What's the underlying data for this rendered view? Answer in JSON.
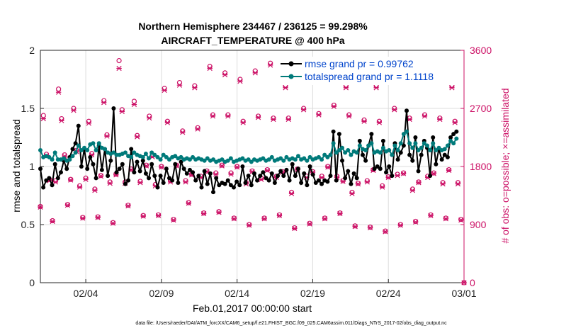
{
  "chart_data": {
    "type": "line",
    "title": "Northern Hemisphere 234467 / 236125 = 99.298%",
    "subtitle": "AIRCRAFT_TEMPERATURE @ 400 hPa",
    "xlabel": "Feb.01,2017 00:00:00 start",
    "ylabel": "rmse and totalspread",
    "ylabel_right": "# of obs: o=possible; ×=assimilated",
    "footnote": "data file: /Users/raeder/DAI/ATM_forcXX/CAM6_setup/f.e21.FHIST_BGC.f09_025.CAM6assim.011/Diags_NTrS_2017-02/obs_diag_output.nc",
    "xlim": [
      1,
      29
    ],
    "ylim": [
      0,
      2
    ],
    "ylim_right": [
      0,
      3600
    ],
    "xtick_values": [
      4,
      9,
      14,
      19,
      24,
      29
    ],
    "xtick_labels": [
      "02/04",
      "02/09",
      "02/14",
      "02/19",
      "02/24",
      "03/01"
    ],
    "ytick_values": [
      0,
      0.5,
      1,
      1.5,
      2
    ],
    "ytick_labels": [
      "0",
      "0.5",
      "1",
      "1.5",
      "2"
    ],
    "ytick_right_values": [
      0,
      900,
      1800,
      2700,
      3600
    ],
    "ytick_right_labels": [
      "0",
      "900",
      "1800",
      "2700",
      "3600"
    ],
    "grid": true,
    "legend_position": "top-right",
    "colors": {
      "rmse": "#000000",
      "spread": "#007a7a",
      "obs": "#cc1166",
      "legend_text": "#0044cc"
    },
    "series": [
      {
        "name": "rmse grand pr = 0.99762",
        "values": [
          0.98,
          0.82,
          0.88,
          0.9,
          0.84,
          1.02,
          0.9,
          0.95,
          1.05,
          0.98,
          1.08,
          1.15,
          1.2,
          1.35,
          1.0,
          1.15,
          0.98,
          1.08,
          1.02,
          0.9,
          1.18,
          0.97,
          1.15,
          0.92,
          1.05,
          1.5,
          0.95,
          0.98,
          1.02,
          0.85,
          0.88,
          1.15,
          0.95,
          1.04,
          0.96,
          1.05,
          0.94,
          0.9,
          1.02,
          0.92,
          0.82,
          0.92,
          0.86,
          0.98,
          0.9,
          0.88,
          1.02,
          0.86,
          1.04,
          0.98,
          0.94,
          0.97,
          0.95,
          0.88,
          0.92,
          0.82,
          0.96,
          0.85,
          0.94,
          0.78,
          0.9,
          0.84,
          0.86,
          0.85,
          0.88,
          0.84,
          0.82,
          0.87,
          0.84,
          1.0,
          0.86,
          0.92,
          0.84,
          0.94,
          0.88,
          0.92,
          0.95,
          0.9,
          0.88,
          0.94,
          0.86,
          0.92,
          0.96,
          0.92,
          0.97,
          0.88,
          1.02,
          0.92,
          0.98,
          0.86,
          0.94,
          0.84,
          1.0,
          0.93,
          0.86,
          0.88,
          0.85,
          0.88,
          0.87,
          0.92,
          1.3,
          0.88,
          1.28,
          1.05,
          0.9,
          0.96,
          0.85,
          0.94,
          0.9,
          1.22,
          1.1,
          1.05,
          1.18,
          1.28,
          0.98,
          1.0,
          0.98,
          1.22,
          0.95,
          1.0,
          0.92,
          1.2,
          1.06,
          1.12,
          1.18,
          1.48,
          1.1,
          1.05,
          1.25,
          0.96,
          1.1,
          1.22,
          1.16,
          0.92,
          1.25,
          1.02,
          1.15,
          1.06,
          1.1,
          1.08,
          1.25,
          1.28,
          1.3
        ]
      },
      {
        "name": "totalspread grand pr = 1.1118",
        "values": [
          1.14,
          1.08,
          1.09,
          1.08,
          1.06,
          1.12,
          1.06,
          1.06,
          1.07,
          1.05,
          1.06,
          1.09,
          1.12,
          1.18,
          1.14,
          1.16,
          1.14,
          1.19,
          1.2,
          1.14,
          1.2,
          1.16,
          1.15,
          1.12,
          1.11,
          1.12,
          1.1,
          1.1,
          1.11,
          1.12,
          1.09,
          1.08,
          1.12,
          1.1,
          1.09,
          1.08,
          1.11,
          1.07,
          1.12,
          1.1,
          1.08,
          1.06,
          1.1,
          1.08,
          1.06,
          1.08,
          1.09,
          1.07,
          1.08,
          1.06,
          1.07,
          1.06,
          1.08,
          1.06,
          1.07,
          1.06,
          1.05,
          1.07,
          1.05,
          1.06,
          1.04,
          1.05,
          1.06,
          1.04,
          1.05,
          1.07,
          1.04,
          1.05,
          1.06,
          1.07,
          1.05,
          1.06,
          1.04,
          1.06,
          1.05,
          1.06,
          1.07,
          1.05,
          1.06,
          1.08,
          1.05,
          1.06,
          1.07,
          1.05,
          1.08,
          1.06,
          1.07,
          1.06,
          1.09,
          1.06,
          1.07,
          1.05,
          1.08,
          1.06,
          1.07,
          1.08,
          1.06,
          1.1,
          1.08,
          1.1,
          1.2,
          1.12,
          1.14,
          1.16,
          1.12,
          1.14,
          1.1,
          1.13,
          1.12,
          1.18,
          1.15,
          1.14,
          1.18,
          1.2,
          1.12,
          1.13,
          1.12,
          1.16,
          1.13,
          1.14,
          1.1,
          1.18,
          1.14,
          1.2,
          1.28,
          1.3,
          1.2,
          1.16,
          1.2,
          1.14,
          1.16,
          1.2,
          1.18,
          1.14,
          1.2,
          1.14,
          1.16,
          1.14,
          1.15,
          1.18,
          1.22,
          1.2,
          1.24
        ]
      }
    ],
    "obs_possible_day": [
      1180,
      1580,
      1600,
      1620,
      1660,
      1680,
      1760,
      1820,
      1800,
      1820,
      1680,
      1730,
      1820,
      1800,
      1730,
      1750,
      1720,
      1760,
      1720,
      1800,
      1580,
      1540,
      1750,
      1640,
      1700,
      1560,
      1700,
      1750
    ],
    "obs_assimilated_day": [
      1170,
      1560,
      1590,
      1600,
      1650,
      1670,
      1750,
      1810,
      1790,
      1810,
      1670,
      1720,
      1810,
      1790,
      1720,
      1740,
      1710,
      1750,
      1710,
      1790,
      1570,
      1530,
      1740,
      1630,
      1690,
      1550,
      1690,
      1740
    ],
    "obs_possible_cycles": [
      [
        2590,
        1990,
        1600,
        960
      ],
      [
        3000,
        2540,
        1980,
        1210
      ],
      [
        2700,
        2050,
        1500,
        1010
      ],
      [
        2500,
        2000,
        1450,
        1020
      ],
      [
        2820,
        2290,
        1560,
        930
      ],
      [
        3440,
        2680,
        1560,
        1200
      ],
      [
        2810,
        2280,
        1570,
        1040
      ],
      [
        2580,
        1970,
        1520,
        1050
      ],
      [
        3010,
        2500,
        1580,
        980
      ],
      [
        3100,
        2350,
        1580,
        1240
      ],
      [
        3050,
        2400,
        1650,
        1080
      ],
      [
        3350,
        2600,
        1700,
        1100
      ],
      [
        3250,
        2600,
        1700,
        1000
      ],
      [
        3150,
        2500,
        1550,
        900
      ],
      [
        3280,
        2580,
        1620,
        1000
      ],
      [
        3400,
        2550,
        1650,
        1050
      ],
      [
        3050,
        2550,
        1400,
        850
      ],
      [
        3180,
        2700,
        1650,
        920
      ],
      [
        3200,
        2620,
        1650,
        1000
      ],
      [
        3400,
        2750,
        1650,
        1080
      ],
      [
        3050,
        2600,
        1400,
        880
      ],
      [
        3250,
        2520,
        1580,
        860
      ],
      [
        3050,
        2500,
        1500,
        800
      ],
      [
        3300,
        2700,
        1680,
        900
      ],
      [
        3150,
        2550,
        1450,
        950
      ],
      [
        3200,
        2600,
        1650,
        1050
      ],
      [
        3250,
        2550,
        1550,
        1000
      ],
      [
        3050,
        2500,
        1550,
        980
      ]
    ],
    "obs_assimilated_cycles": [
      [
        2540,
        1970,
        1580,
        950
      ],
      [
        2950,
        2510,
        1960,
        1200
      ],
      [
        2670,
        2030,
        1480,
        1000
      ],
      [
        2470,
        1980,
        1430,
        1010
      ],
      [
        2790,
        2270,
        1540,
        920
      ],
      [
        3320,
        2650,
        1540,
        1190
      ],
      [
        2760,
        2260,
        1550,
        1030
      ],
      [
        2550,
        1950,
        1500,
        1040
      ],
      [
        2980,
        2480,
        1560,
        970
      ],
      [
        3060,
        2330,
        1560,
        1230
      ],
      [
        3020,
        2380,
        1630,
        1070
      ],
      [
        3320,
        2580,
        1680,
        1090
      ],
      [
        3220,
        2580,
        1680,
        990
      ],
      [
        3120,
        2480,
        1530,
        890
      ],
      [
        3250,
        2560,
        1600,
        990
      ],
      [
        3370,
        2530,
        1630,
        1040
      ],
      [
        3020,
        2530,
        1380,
        840
      ],
      [
        3150,
        2680,
        1630,
        910
      ],
      [
        3170,
        2600,
        1630,
        990
      ],
      [
        3370,
        2730,
        1630,
        1070
      ],
      [
        3020,
        2580,
        1380,
        870
      ],
      [
        3220,
        2500,
        1560,
        850
      ],
      [
        3020,
        2480,
        1480,
        790
      ],
      [
        3270,
        2680,
        1660,
        890
      ],
      [
        3120,
        2530,
        1430,
        940
      ],
      [
        3170,
        2580,
        1630,
        1040
      ],
      [
        3220,
        2530,
        1530,
        990
      ],
      [
        3020,
        2480,
        1530,
        970
      ]
    ]
  }
}
